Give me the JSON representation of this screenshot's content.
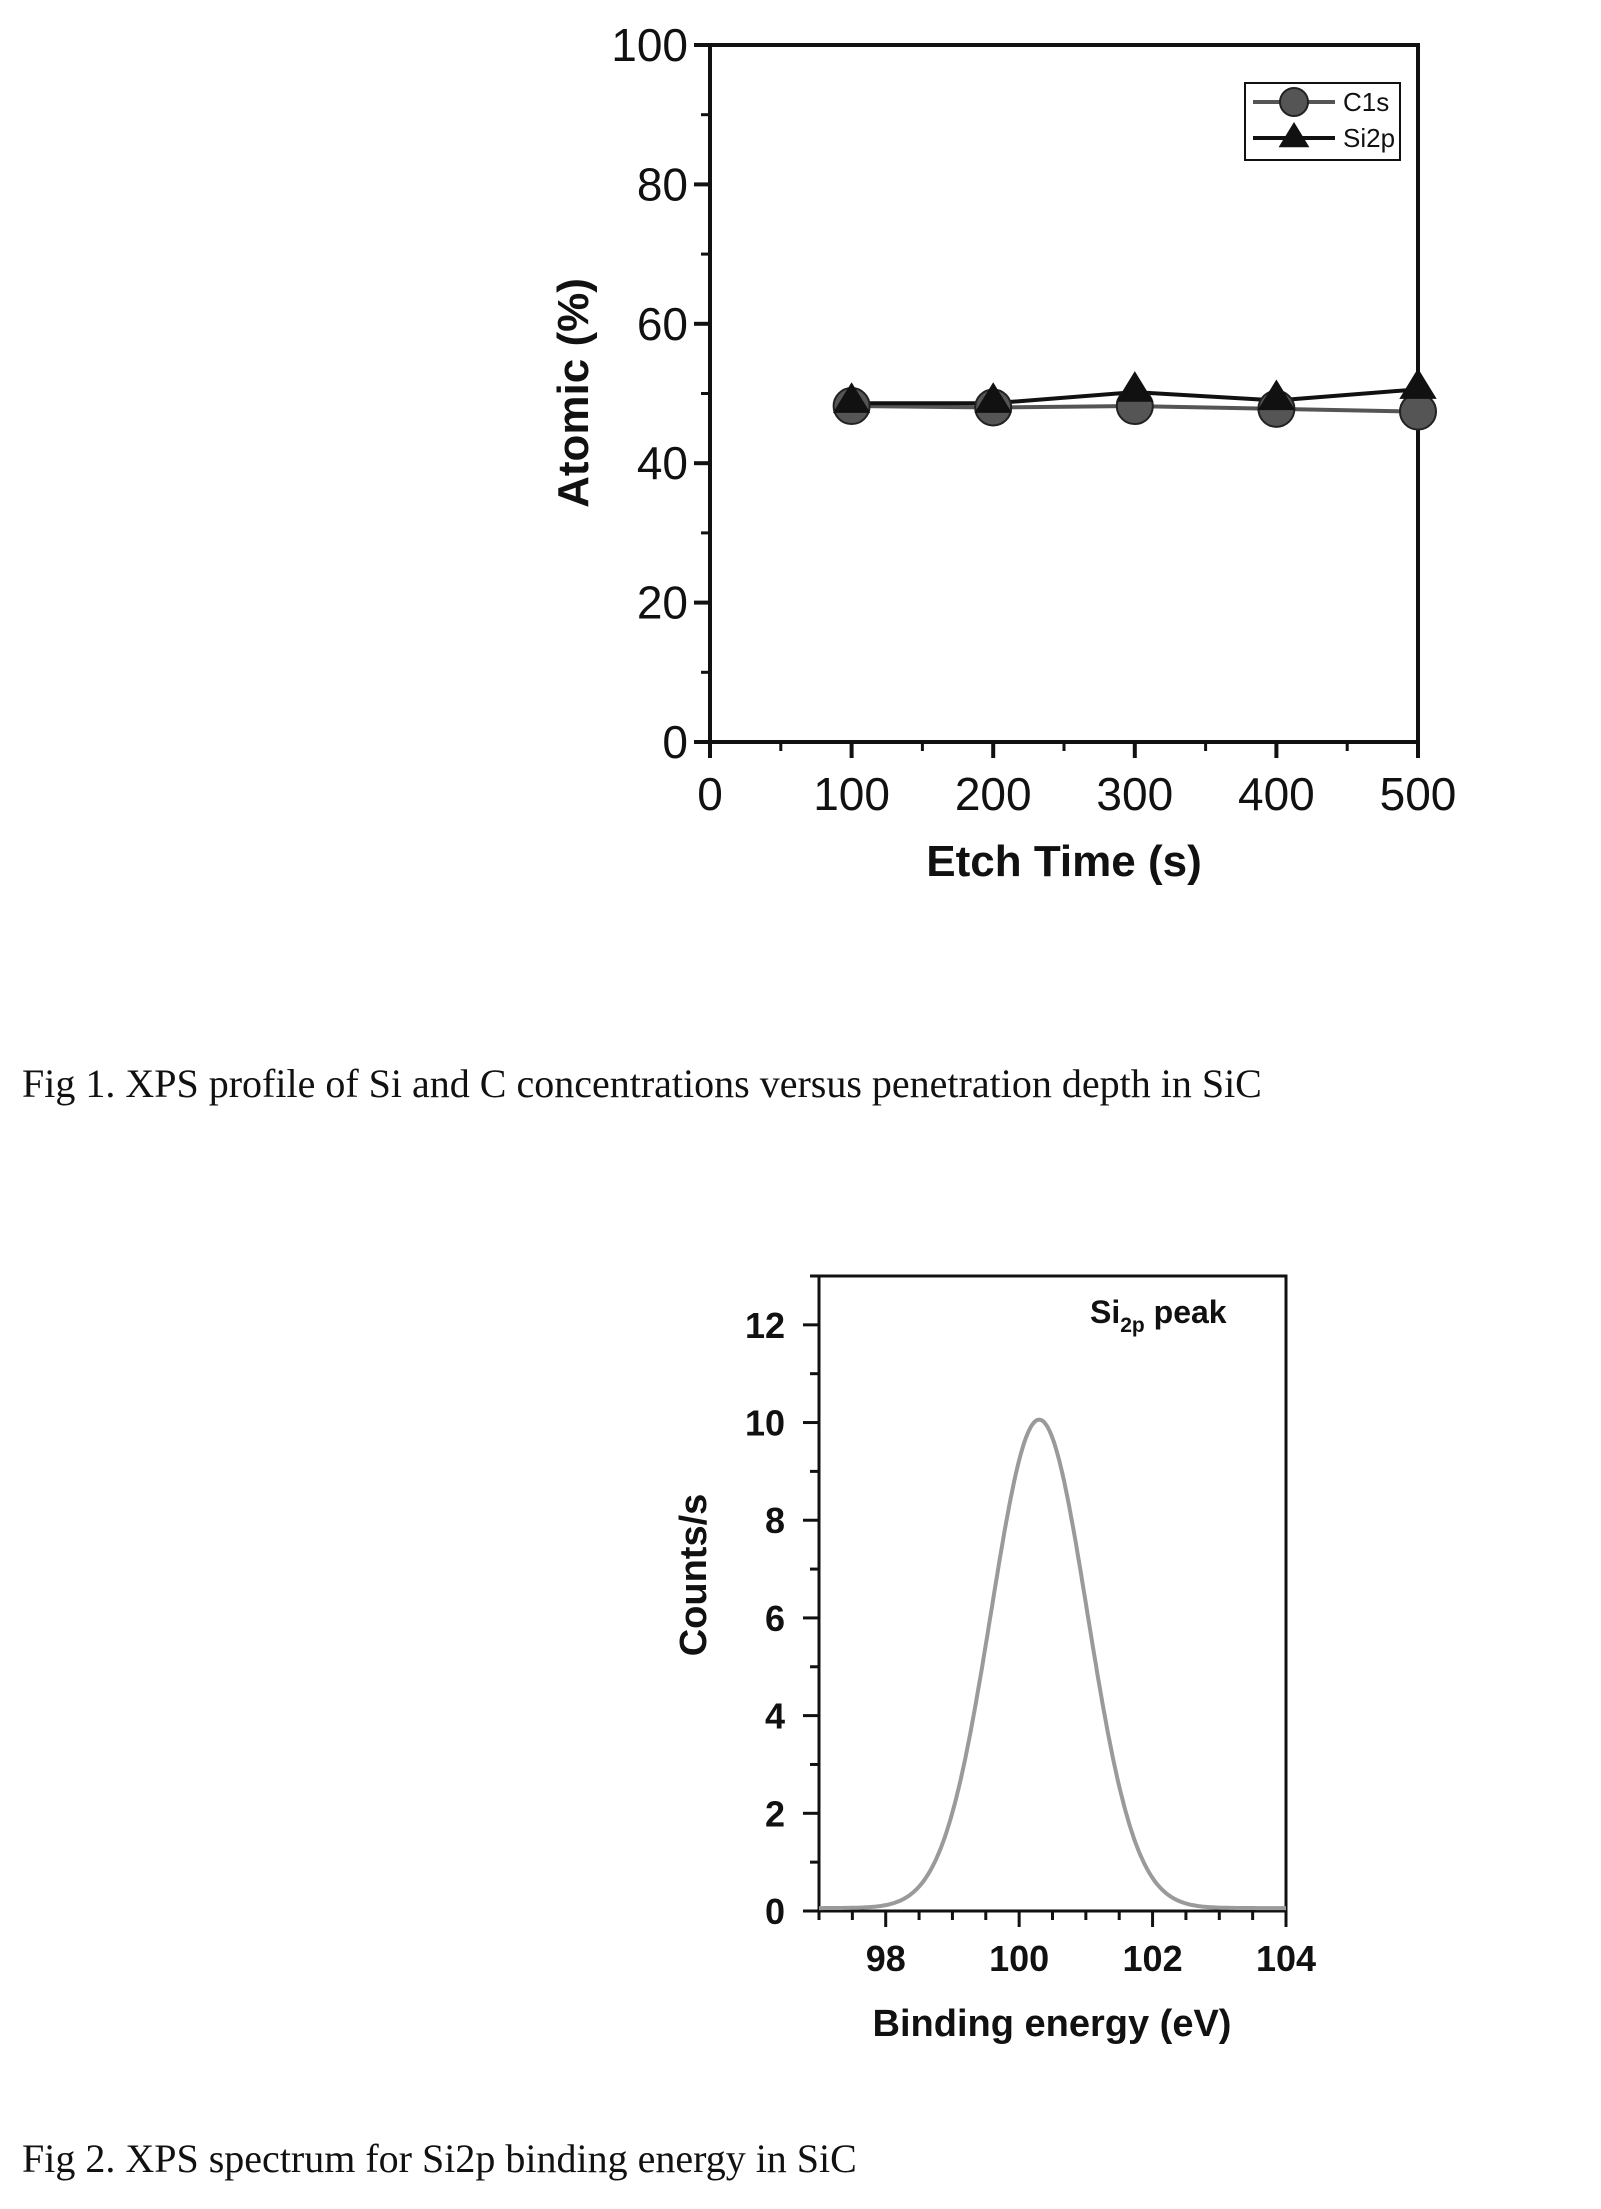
{
  "chart_data": [
    {
      "type": "line",
      "xlabel": "Etch Time (s)",
      "ylabel": "Atomic (%)",
      "xlim": [
        0,
        500
      ],
      "ylim": [
        0,
        100
      ],
      "xticks": [
        0,
        100,
        200,
        300,
        400,
        500
      ],
      "yticks": [
        0,
        20,
        40,
        60,
        80,
        100
      ],
      "x": [
        100,
        200,
        300,
        400,
        500
      ],
      "series": [
        {
          "name": "C1s",
          "marker": "circle",
          "color": "#555555",
          "values": [
            48.2,
            48.0,
            48.2,
            47.8,
            47.4
          ]
        },
        {
          "name": "Si2p",
          "marker": "triangle",
          "color": "#111111",
          "values": [
            48.6,
            48.6,
            50.2,
            49.0,
            50.6
          ]
        }
      ],
      "legend_position": "top-right",
      "grid": false
    },
    {
      "type": "line",
      "annotation_main": "Si",
      "annotation_sub": "2p",
      "annotation_tail": " peak",
      "xlabel": "Binding energy (eV)",
      "ylabel": "Counts/s",
      "xlim": [
        97,
        104
      ],
      "ylim": [
        0,
        13
      ],
      "xticks": [
        98,
        100,
        102,
        104
      ],
      "yticks": [
        0,
        2,
        4,
        6,
        8,
        10,
        12
      ],
      "peak_center": 100.3,
      "peak_height": 10,
      "peak_sigma": 0.72,
      "color": "#9a9a9a",
      "grid": false
    }
  ],
  "captions": {
    "fig1": "Fig 1.  XPS profile of Si and C concentrations versus penetration depth in SiC",
    "fig2": "Fig 2. XPS spectrum for Si2p binding energy in SiC"
  }
}
